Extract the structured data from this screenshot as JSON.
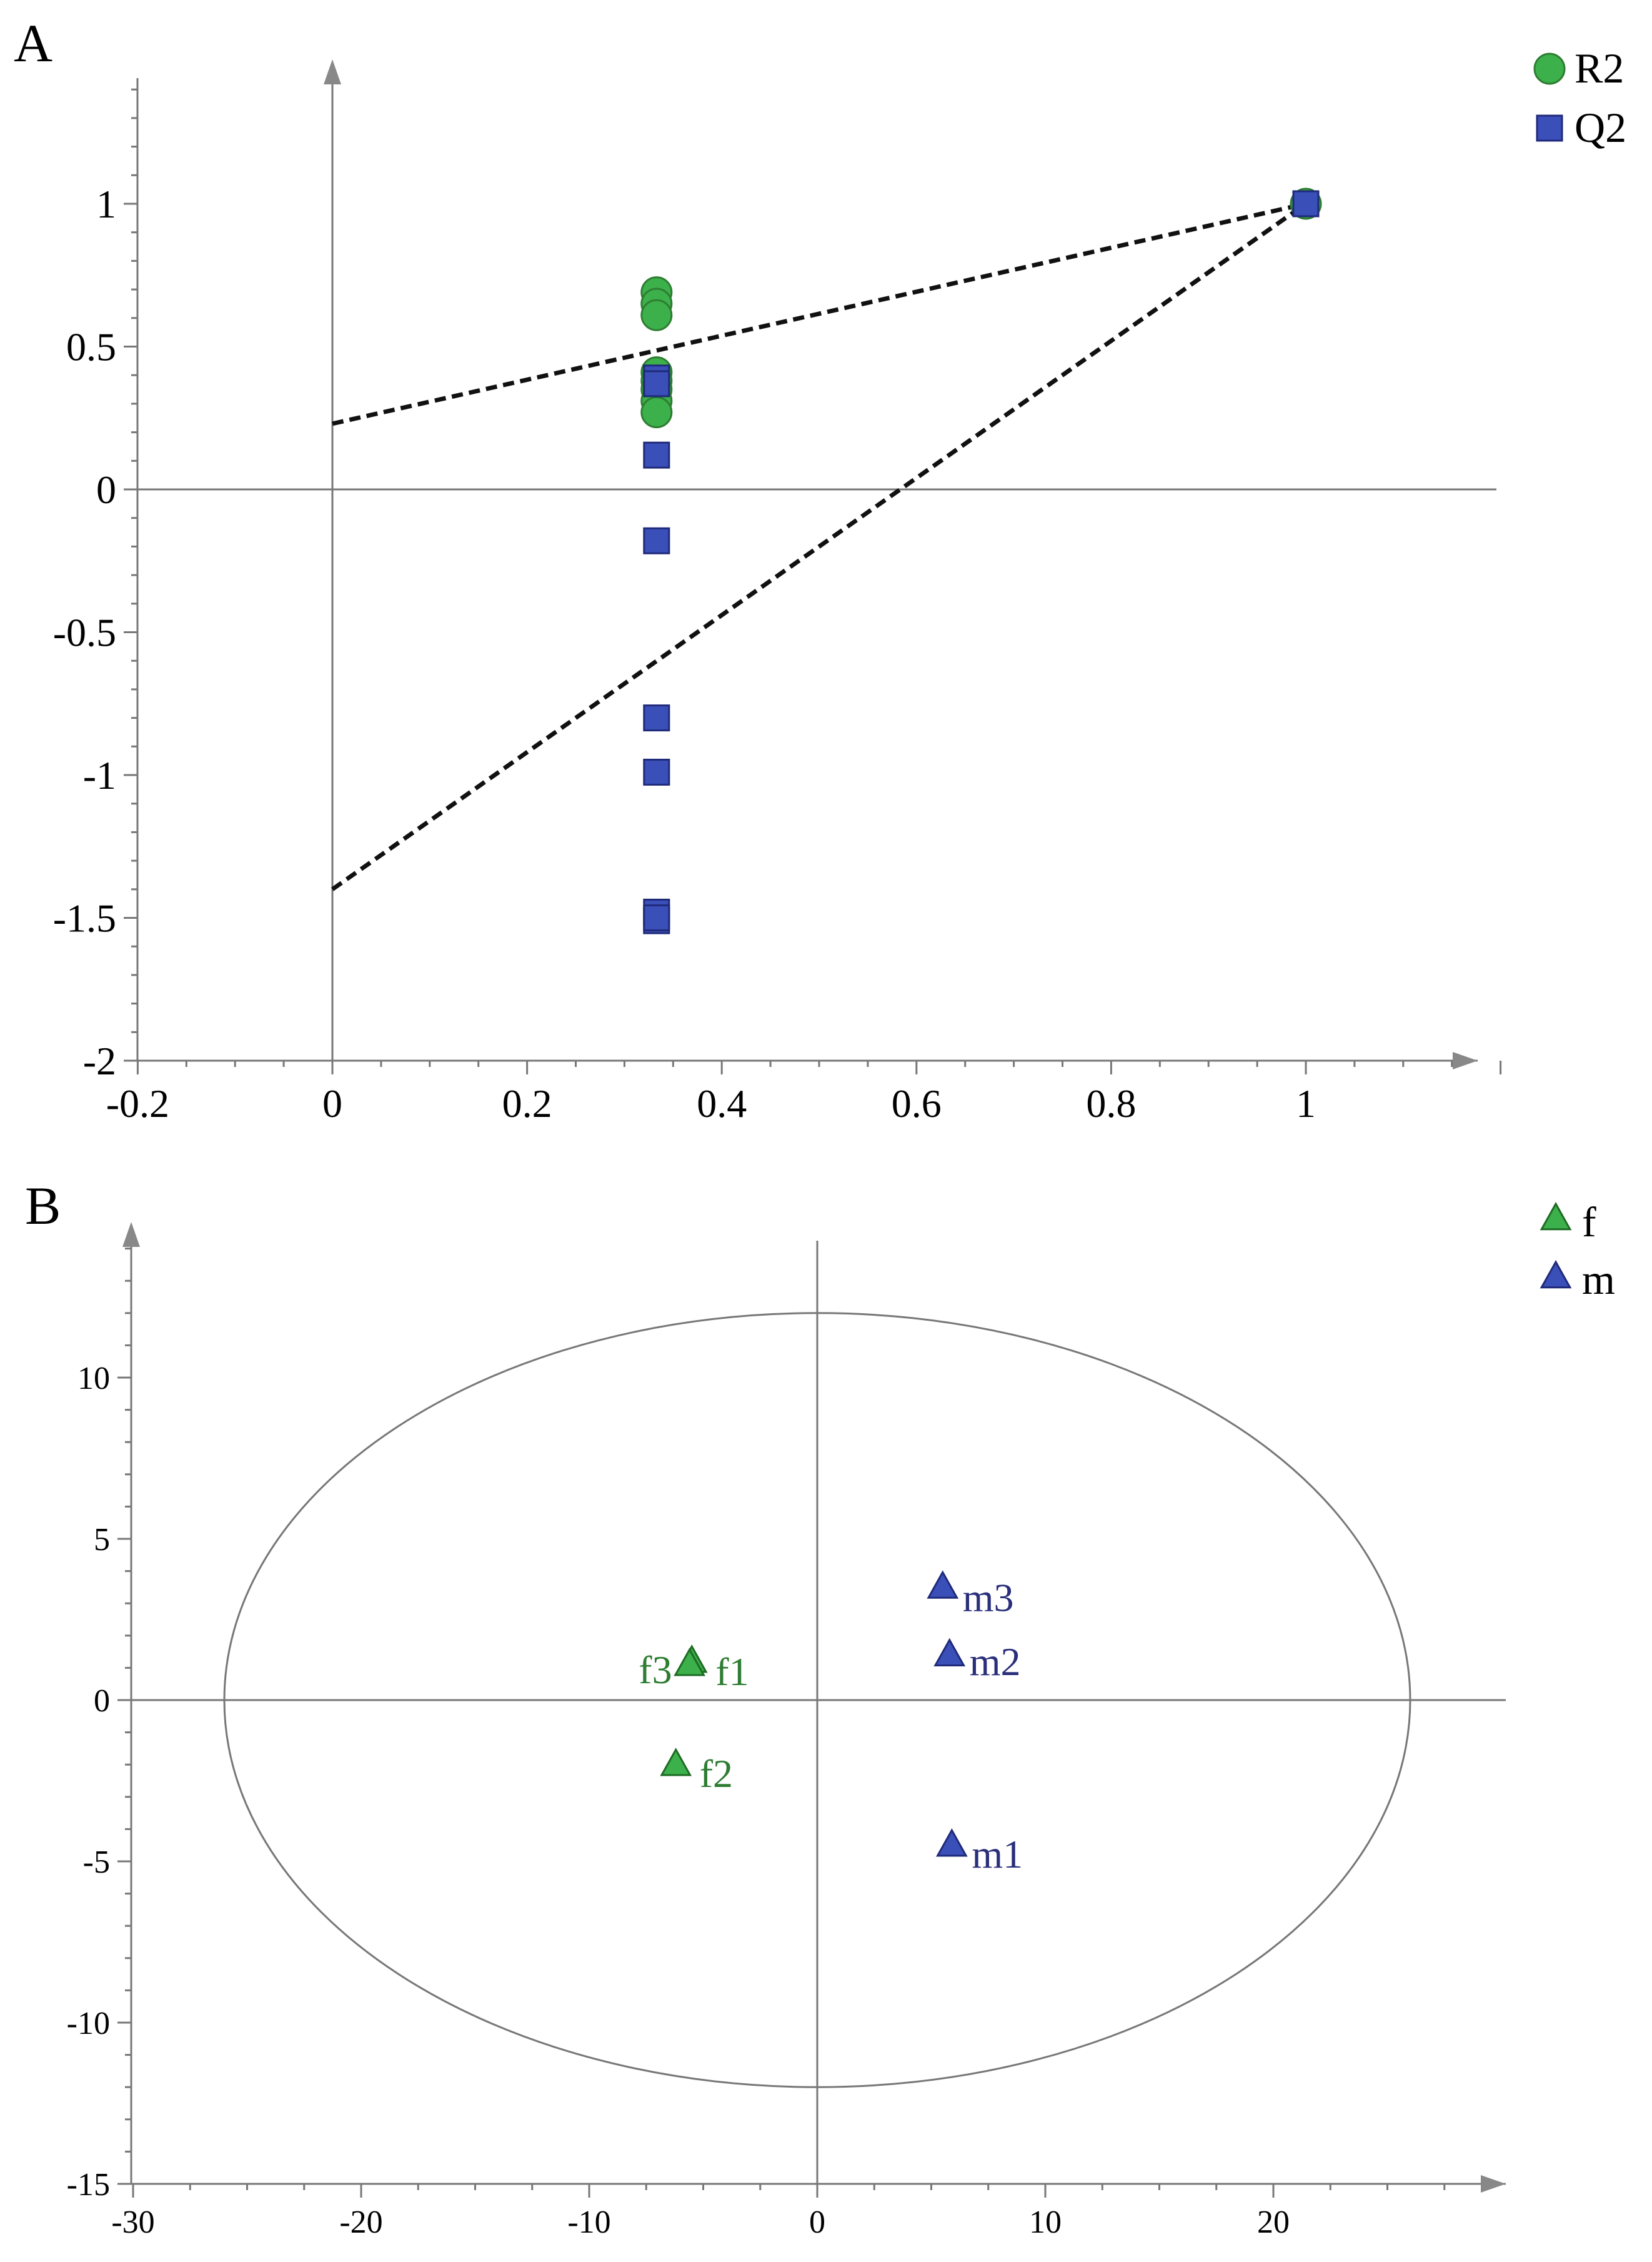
{
  "chart_data": [
    {
      "type": "scatter",
      "panel": "A",
      "title": "",
      "xlabel": "",
      "ylabel": "",
      "xlim": [
        -0.2,
        1.2
      ],
      "ylim": [
        -2,
        1.5
      ],
      "xticks": [
        -0.2,
        0,
        0.2,
        0.4,
        0.6,
        0.8,
        1
      ],
      "xtick_labels": [
        "-0.2",
        "0",
        "0.2",
        "0.4",
        "0.6",
        "0.8",
        "1"
      ],
      "yticks": [
        -2,
        -1.5,
        -1,
        -0.5,
        0,
        0.5,
        1
      ],
      "ytick_labels": [
        "-2",
        "-1.5",
        "-1",
        "-0.5",
        "0",
        "0.5",
        "1"
      ],
      "legend_position": "top-right",
      "colors": {
        "R2": "#3cb04a",
        "Q2": "#3a4fb8"
      },
      "series": [
        {
          "name": "R2",
          "marker": "circle",
          "x": [
            0.333,
            0.333,
            0.333,
            0.333,
            0.333,
            0.333,
            0.333,
            0.333,
            1.0
          ],
          "y": [
            0.69,
            0.65,
            0.61,
            0.41,
            0.38,
            0.35,
            0.31,
            0.27,
            1.0
          ]
        },
        {
          "name": "Q2",
          "marker": "square",
          "x": [
            0.333,
            0.333,
            0.333,
            0.333,
            0.333,
            0.333,
            0.333,
            0.333,
            0.333,
            1.0
          ],
          "y": [
            0.39,
            0.37,
            0.12,
            -0.18,
            -0.8,
            -0.99,
            -1.48,
            -1.51,
            -1.5,
            1.0
          ]
        }
      ],
      "regression_lines": [
        {
          "name": "R2 trend",
          "x": [
            0,
            1
          ],
          "y": [
            0.23,
            1.0
          ]
        },
        {
          "name": "Q2 trend",
          "x": [
            0,
            1
          ],
          "y": [
            -1.4,
            1.0
          ]
        }
      ]
    },
    {
      "type": "scatter",
      "panel": "B",
      "title": "",
      "xlabel": "",
      "ylabel": "",
      "xlim": [
        -30,
        30
      ],
      "ylim": [
        -15,
        15
      ],
      "xticks": [
        -30,
        -20,
        -10,
        0,
        10,
        20
      ],
      "xtick_labels": [
        "-30",
        "-20",
        "-10",
        "0",
        "10",
        "20"
      ],
      "yticks": [
        -15,
        -10,
        -5,
        0,
        5,
        10
      ],
      "ytick_labels": [
        "-15",
        "-10",
        "-5",
        "0",
        "5",
        "10"
      ],
      "legend_position": "top-right",
      "colors": {
        "f": "#3cb04a",
        "m": "#3a4fb8",
        "f_text": "#2e7d32",
        "m_text": "#2a2f7a"
      },
      "ellipse": {
        "cx": 0,
        "cy": 0,
        "rx": 26,
        "ry": 12
      },
      "series": [
        {
          "name": "f",
          "marker": "triangle",
          "points": [
            {
              "label": "f1",
              "x": -5.5,
              "y": 1.2
            },
            {
              "label": "f3",
              "x": -5.6,
              "y": 1.1
            },
            {
              "label": "f2",
              "x": -6.2,
              "y": -2.0
            }
          ]
        },
        {
          "name": "m",
          "marker": "triangle",
          "points": [
            {
              "label": "m3",
              "x": 5.5,
              "y": 3.5
            },
            {
              "label": "m2",
              "x": 5.8,
              "y": 1.4
            },
            {
              "label": "m1",
              "x": 5.9,
              "y": -4.5
            }
          ]
        }
      ]
    }
  ]
}
